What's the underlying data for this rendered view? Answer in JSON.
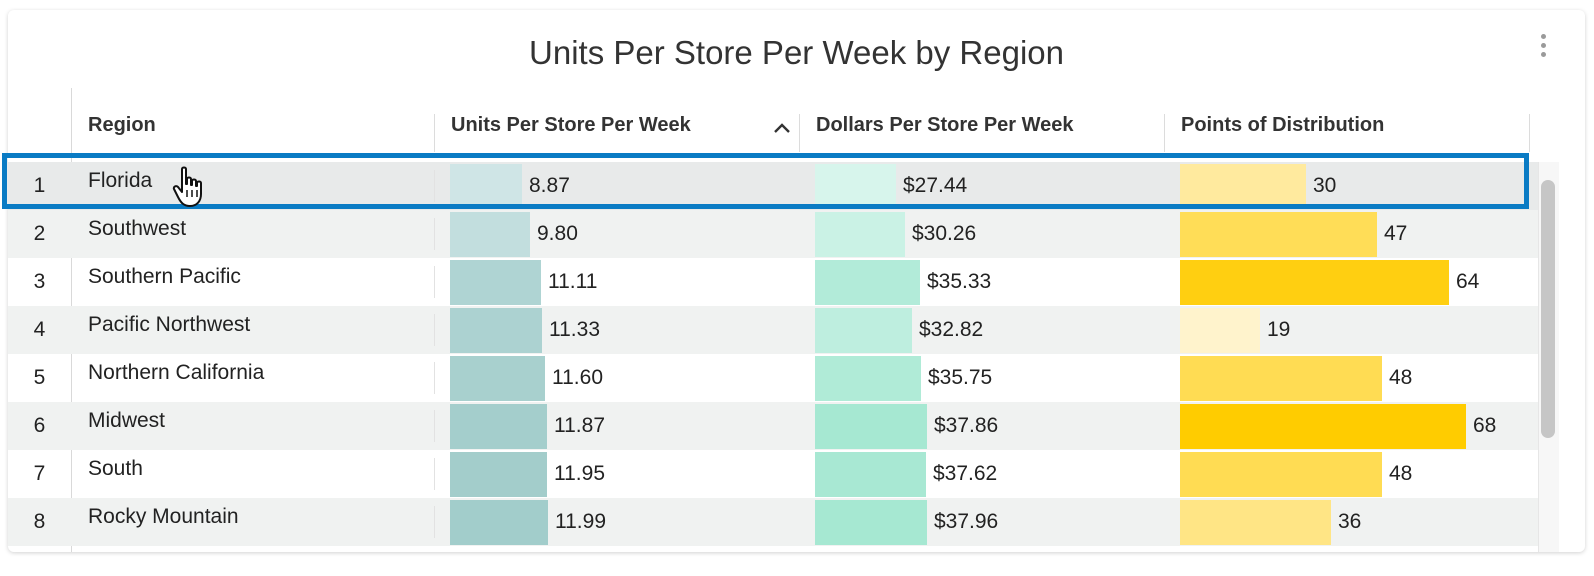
{
  "title": "Units Per Store Per Week by Region",
  "columns": [
    {
      "label": "Region"
    },
    {
      "label": "Units Per Store Per Week",
      "sorted": "ascending"
    },
    {
      "label": "Dollars Per Store Per Week"
    },
    {
      "label": "Points of Distribution"
    }
  ],
  "colors": {
    "selection_outline": "#0a7bc4",
    "units_bar_scale": [
      "#cfe5e6",
      "#a2cdcb"
    ],
    "dollars_bar_scale": [
      "#d7f5ec",
      "#a6e8d2"
    ],
    "points_bar_scale": [
      "#fff3cc",
      "#ffcc00"
    ]
  },
  "rows": [
    {
      "num": "1",
      "region": "Florida",
      "units": 8.87,
      "units_label": "8.87",
      "dollars": 27.44,
      "dollars_label": "$27.44",
      "points": 30,
      "points_label": "30",
      "selected": true
    },
    {
      "num": "2",
      "region": "Southwest",
      "units": 9.8,
      "units_label": "9.80",
      "dollars": 30.26,
      "dollars_label": "$30.26",
      "points": 47,
      "points_label": "47"
    },
    {
      "num": "3",
      "region": "Southern Pacific",
      "units": 11.11,
      "units_label": "11.11",
      "dollars": 35.33,
      "dollars_label": "$35.33",
      "points": 64,
      "points_label": "64"
    },
    {
      "num": "4",
      "region": "Pacific Northwest",
      "units": 11.33,
      "units_label": "11.33",
      "dollars": 32.82,
      "dollars_label": "$32.82",
      "points": 19,
      "points_label": "19"
    },
    {
      "num": "5",
      "region": "Northern California",
      "units": 11.6,
      "units_label": "11.60",
      "dollars": 35.75,
      "dollars_label": "$35.75",
      "points": 48,
      "points_label": "48"
    },
    {
      "num": "6",
      "region": "Midwest",
      "units": 11.87,
      "units_label": "11.87",
      "dollars": 37.86,
      "dollars_label": "$37.86",
      "points": 68,
      "points_label": "68"
    },
    {
      "num": "7",
      "region": "South",
      "units": 11.95,
      "units_label": "11.95",
      "dollars": 37.62,
      "dollars_label": "$37.62",
      "points": 48,
      "points_label": "48"
    },
    {
      "num": "8",
      "region": "Rocky Mountain",
      "units": 11.99,
      "units_label": "11.99",
      "dollars": 37.96,
      "dollars_label": "$37.96",
      "points": 36,
      "points_label": "36"
    }
  ]
}
